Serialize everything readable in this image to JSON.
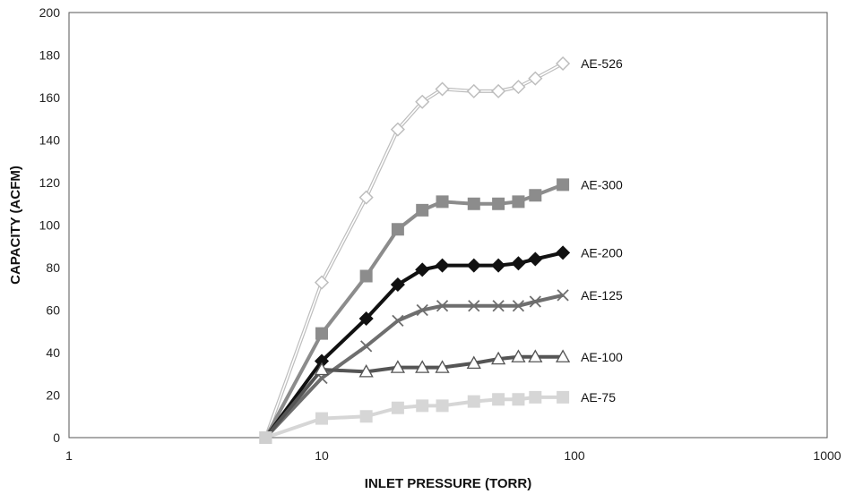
{
  "chart_data": {
    "type": "line",
    "xlabel": "INLET PRESSURE (TORR)",
    "ylabel": "CAPACITY (ACFM)",
    "xscale": "log",
    "xlim": [
      1,
      1000
    ],
    "ylim": [
      0,
      200
    ],
    "x_ticks": [
      1,
      10,
      100,
      1000
    ],
    "x_tick_labels": [
      "1",
      "10",
      "100",
      "1000"
    ],
    "y_ticks": [
      0,
      20,
      40,
      60,
      80,
      100,
      120,
      140,
      160,
      180,
      200
    ],
    "y_tick_labels": [
      "0",
      "20",
      "40",
      "60",
      "80",
      "100",
      "120",
      "140",
      "160",
      "180",
      "200"
    ],
    "grid": true,
    "legend": "labels at right end of each series",
    "series": [
      {
        "name": "AE-526",
        "color": "#bdbdbd",
        "marker": "diamond-open",
        "x": [
          6,
          10,
          15,
          20,
          25,
          30,
          40,
          50,
          60,
          70,
          90
        ],
        "y": [
          0,
          73,
          113,
          145,
          158,
          164,
          163,
          163,
          165,
          169,
          176
        ]
      },
      {
        "name": "AE-300",
        "color": "#8c8c8c",
        "marker": "square",
        "x": [
          6,
          10,
          15,
          20,
          25,
          30,
          40,
          50,
          60,
          70,
          90
        ],
        "y": [
          0,
          49,
          76,
          98,
          107,
          111,
          110,
          110,
          111,
          114,
          119
        ]
      },
      {
        "name": "AE-200",
        "color": "#111111",
        "marker": "diamond",
        "x": [
          6,
          10,
          15,
          20,
          25,
          30,
          40,
          50,
          60,
          70,
          90
        ],
        "y": [
          0,
          36,
          56,
          72,
          79,
          81,
          81,
          81,
          82,
          84,
          87
        ]
      },
      {
        "name": "AE-125",
        "color": "#6e6e6e",
        "marker": "x",
        "x": [
          6,
          10,
          15,
          20,
          25,
          30,
          40,
          50,
          60,
          70,
          90
        ],
        "y": [
          0,
          28,
          43,
          55,
          60,
          62,
          62,
          62,
          62,
          64,
          67
        ]
      },
      {
        "name": "AE-100",
        "color": "#555555",
        "marker": "triangle-open",
        "x": [
          6,
          10,
          15,
          20,
          25,
          30,
          40,
          50,
          60,
          70,
          90
        ],
        "y": [
          0,
          32,
          31,
          33,
          33,
          33,
          35,
          37,
          38,
          38,
          38
        ]
      },
      {
        "name": "AE-75",
        "color": "#d6d6d6",
        "marker": "square",
        "x": [
          6,
          10,
          15,
          20,
          25,
          30,
          40,
          50,
          60,
          70,
          90
        ],
        "y": [
          0,
          9,
          10,
          14,
          15,
          15,
          17,
          18,
          18,
          19,
          19
        ]
      }
    ]
  }
}
